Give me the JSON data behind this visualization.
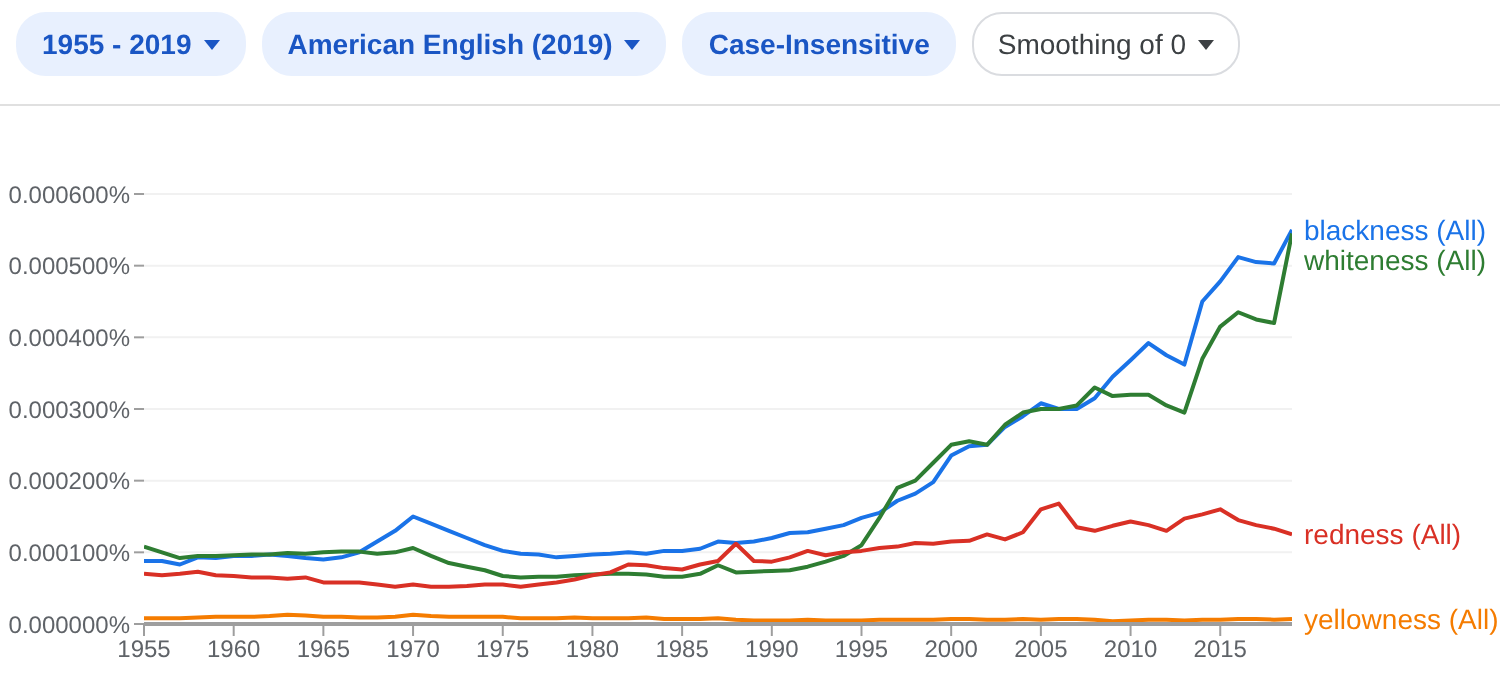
{
  "chart_data": {
    "type": "line",
    "annotations": [
      "1955 - 2019",
      "American English (2019)",
      "Case-Insensitive",
      "Smoothing of 0"
    ],
    "x": [
      1955,
      1956,
      1957,
      1958,
      1959,
      1960,
      1961,
      1962,
      1963,
      1964,
      1965,
      1966,
      1967,
      1968,
      1969,
      1970,
      1971,
      1972,
      1973,
      1974,
      1975,
      1976,
      1977,
      1978,
      1979,
      1980,
      1981,
      1982,
      1983,
      1984,
      1985,
      1986,
      1987,
      1988,
      1989,
      1990,
      1991,
      1992,
      1993,
      1994,
      1995,
      1996,
      1997,
      1998,
      1999,
      2000,
      2001,
      2002,
      2003,
      2004,
      2005,
      2006,
      2007,
      2008,
      2009,
      2010,
      2011,
      2012,
      2013,
      2014,
      2015,
      2016,
      2017,
      2018,
      2019
    ],
    "series": [
      {
        "name": "blackness (All)",
        "color": "#1a73e8",
        "values": [
          8.8e-05,
          8.8e-05,
          8.3e-05,
          9.3e-05,
          9.2e-05,
          9.5e-05,
          9.5e-05,
          9.7e-05,
          9.5e-05,
          9.2e-05,
          9e-05,
          9.3e-05,
          0.0001,
          0.000115,
          0.00013,
          0.00015,
          0.00014,
          0.00013,
          0.00012,
          0.00011,
          0.000102,
          9.8e-05,
          9.7e-05,
          9.3e-05,
          9.5e-05,
          9.7e-05,
          9.8e-05,
          0.0001,
          9.8e-05,
          0.000102,
          0.000102,
          0.000105,
          0.000115,
          0.000113,
          0.000115,
          0.00012,
          0.000127,
          0.000128,
          0.000133,
          0.000138,
          0.000148,
          0.000155,
          0.000172,
          0.000182,
          0.000198,
          0.000235,
          0.000248,
          0.00025,
          0.000275,
          0.00029,
          0.000308,
          0.0003,
          0.0003,
          0.000315,
          0.000345,
          0.000368,
          0.000392,
          0.000375,
          0.000362,
          0.00045,
          0.000478,
          0.000512,
          0.000505,
          0.000503,
          0.00055
        ]
      },
      {
        "name": "whiteness (All)",
        "color": "#2e7d32",
        "values": [
          0.000108,
          0.0001,
          9.2e-05,
          9.5e-05,
          9.5e-05,
          9.6e-05,
          9.7e-05,
          9.7e-05,
          9.9e-05,
          9.8e-05,
          0.0001,
          0.000101,
          0.000101,
          9.8e-05,
          0.0001,
          0.000106,
          9.5e-05,
          8.5e-05,
          8e-05,
          7.5e-05,
          6.7e-05,
          6.5e-05,
          6.6e-05,
          6.6e-05,
          6.8e-05,
          6.9e-05,
          7e-05,
          7e-05,
          6.9e-05,
          6.6e-05,
          6.6e-05,
          7e-05,
          8.2e-05,
          7.2e-05,
          7.3e-05,
          7.4e-05,
          7.5e-05,
          8e-05,
          8.7e-05,
          9.5e-05,
          0.00011,
          0.000148,
          0.00019,
          0.0002,
          0.000225,
          0.00025,
          0.000255,
          0.00025,
          0.000278,
          0.000295,
          0.0003,
          0.0003,
          0.000305,
          0.00033,
          0.000318,
          0.00032,
          0.00032,
          0.000305,
          0.000295,
          0.00037,
          0.000415,
          0.000435,
          0.000425,
          0.00042,
          0.000545
        ]
      },
      {
        "name": "redness (All)",
        "color": "#d93025",
        "values": [
          7e-05,
          6.8e-05,
          7e-05,
          7.3e-05,
          6.8e-05,
          6.7e-05,
          6.5e-05,
          6.5e-05,
          6.3e-05,
          6.5e-05,
          5.8e-05,
          5.8e-05,
          5.8e-05,
          5.5e-05,
          5.2e-05,
          5.5e-05,
          5.2e-05,
          5.2e-05,
          5.3e-05,
          5.5e-05,
          5.5e-05,
          5.2e-05,
          5.5e-05,
          5.8e-05,
          6.2e-05,
          6.8e-05,
          7.2e-05,
          8.3e-05,
          8.2e-05,
          7.8e-05,
          7.6e-05,
          8.3e-05,
          8.8e-05,
          0.000112,
          8.8e-05,
          8.7e-05,
          9.3e-05,
          0.000102,
          9.6e-05,
          0.0001,
          0.000102,
          0.000106,
          0.000108,
          0.000113,
          0.000112,
          0.000115,
          0.000116,
          0.000125,
          0.000118,
          0.000128,
          0.00016,
          0.000168,
          0.000135,
          0.00013,
          0.000137,
          0.000143,
          0.000138,
          0.00013,
          0.000147,
          0.000153,
          0.00016,
          0.000145,
          0.000138,
          0.000133,
          0.000125
        ]
      },
      {
        "name": "yellowness (All)",
        "color": "#f57c00",
        "values": [
          8e-06,
          8e-06,
          8e-06,
          9e-06,
          1e-05,
          1e-05,
          1e-05,
          1.1e-05,
          1.3e-05,
          1.2e-05,
          1e-05,
          1e-05,
          9e-06,
          9e-06,
          1e-05,
          1.3e-05,
          1.1e-05,
          1e-05,
          1e-05,
          1e-05,
          1e-05,
          8e-06,
          8e-06,
          8e-06,
          9e-06,
          8e-06,
          8e-06,
          8e-06,
          9e-06,
          7e-06,
          7e-06,
          7e-06,
          8e-06,
          6e-06,
          5e-06,
          5e-06,
          5e-06,
          6e-06,
          5e-06,
          5e-06,
          5e-06,
          6e-06,
          6e-06,
          6e-06,
          6e-06,
          7e-06,
          7e-06,
          6e-06,
          6e-06,
          7e-06,
          6e-06,
          7e-06,
          7e-06,
          6e-06,
          4e-06,
          5e-06,
          6e-06,
          6e-06,
          5e-06,
          6e-06,
          6e-06,
          7e-06,
          7e-06,
          6e-06,
          7e-06
        ]
      }
    ],
    "xlim": [
      1955,
      2019
    ],
    "xticks": [
      1955,
      1960,
      1965,
      1970,
      1975,
      1980,
      1985,
      1990,
      1995,
      2000,
      2005,
      2010,
      2015
    ],
    "ylim": [
      0,
      0.0006
    ],
    "yticks": [
      {
        "value": 0,
        "label": "0.000000%"
      },
      {
        "value": 0.0001,
        "label": "0.000100%"
      },
      {
        "value": 0.0002,
        "label": "0.000200%"
      },
      {
        "value": 0.0003,
        "label": "0.000300%"
      },
      {
        "value": 0.0004,
        "label": "0.000400%"
      },
      {
        "value": 0.0005,
        "label": "0.000500%"
      },
      {
        "value": 0.0006,
        "label": "0.000600%"
      }
    ],
    "grid": "y",
    "legend": false,
    "marker": "none",
    "line_style": "solid"
  }
}
